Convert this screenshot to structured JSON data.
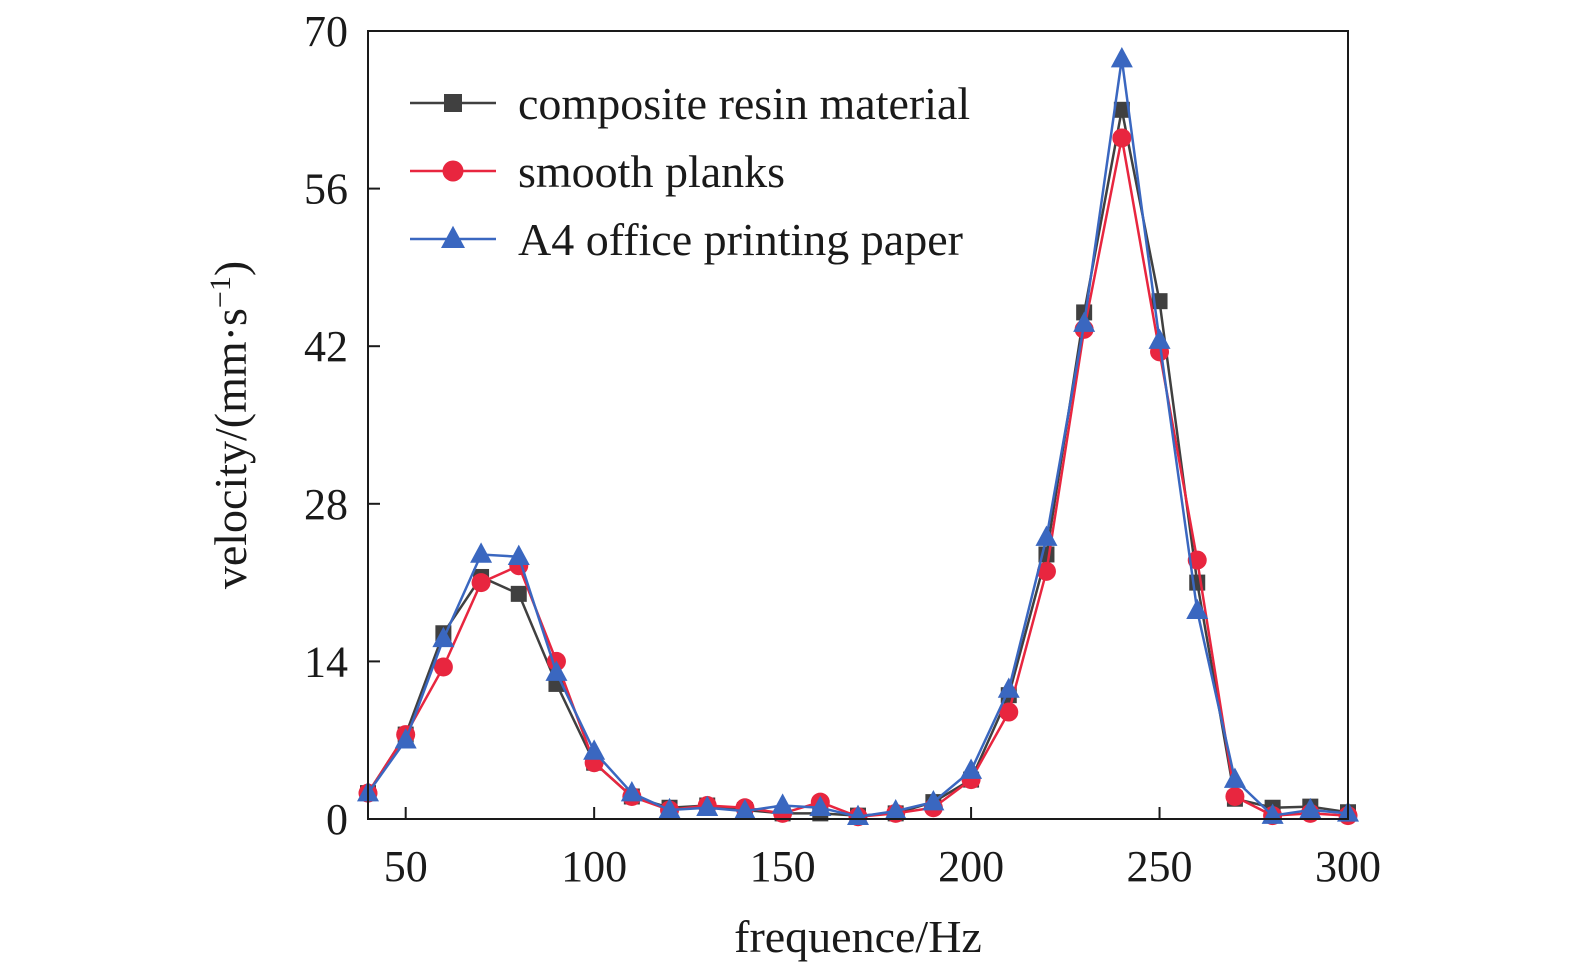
{
  "chart_data": {
    "type": "line",
    "xlabel": "frequence/Hz",
    "ylabel": "velocity/(mm·s",
    "ylabel_sup": "−1",
    "ylabel_close": ")",
    "xlim": [
      40,
      300
    ],
    "ylim": [
      0,
      70
    ],
    "xticks": [
      50,
      100,
      150,
      200,
      250,
      300
    ],
    "yticks": [
      0,
      14,
      28,
      42,
      56,
      70
    ],
    "legend_position": "top-left",
    "grid": false,
    "x": [
      40,
      50,
      60,
      70,
      80,
      90,
      100,
      110,
      120,
      130,
      140,
      150,
      160,
      170,
      180,
      190,
      200,
      210,
      220,
      230,
      240,
      250,
      260,
      270,
      280,
      290,
      300
    ],
    "series": [
      {
        "name": "composite resin material",
        "color": "#404040",
        "marker": "square",
        "values": [
          2.3,
          7.5,
          16.5,
          21.5,
          20.0,
          12.0,
          5.0,
          2.0,
          1.0,
          1.2,
          0.8,
          0.5,
          0.5,
          0.3,
          0.5,
          1.5,
          3.5,
          11.0,
          23.5,
          45.0,
          63.0,
          46.0,
          21.0,
          1.8,
          1.0,
          1.1,
          0.6
        ]
      },
      {
        "name": "smooth planks",
        "color": "#e8263f",
        "marker": "circle",
        "values": [
          2.3,
          7.5,
          13.5,
          21.0,
          22.5,
          14.0,
          5.0,
          2.0,
          0.8,
          1.2,
          1.0,
          0.5,
          1.5,
          0.2,
          0.5,
          1.0,
          3.5,
          9.5,
          22.0,
          43.5,
          60.5,
          41.5,
          23.0,
          2.0,
          0.3,
          0.5,
          0.3
        ]
      },
      {
        "name": "A4 office printing paper",
        "color": "#3a67c0",
        "marker": "triangle",
        "values": [
          2.3,
          7.0,
          16.0,
          23.5,
          23.3,
          13.0,
          6.0,
          2.3,
          0.8,
          1.0,
          0.7,
          1.2,
          1.0,
          0.2,
          0.7,
          1.5,
          4.3,
          11.5,
          25.0,
          44.0,
          67.5,
          42.5,
          18.5,
          3.5,
          0.3,
          0.8,
          0.5
        ]
      }
    ]
  }
}
